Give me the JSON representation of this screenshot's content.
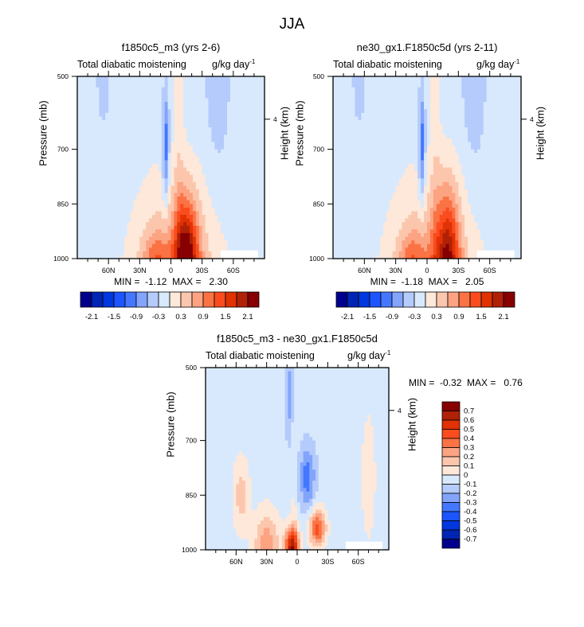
{
  "page_title": "JJA",
  "chart_data": [
    {
      "type": "heatmap",
      "subtype": "filled-contour",
      "title": "f1850c5_m3 (yrs 2-6)",
      "left_label": "Total diabatic moistening",
      "right_label_base": "g/kg day",
      "right_label_exp": "-1",
      "ylabel": "Pressure (mb)",
      "ylabel_right": "Height (km)",
      "yticks": [
        "500",
        "700",
        "850",
        "1000"
      ],
      "yticks_right": [
        "4"
      ],
      "xticks": [
        "60N",
        "30N",
        "0",
        "30S",
        "60S"
      ],
      "ylim": [
        1000,
        500
      ],
      "xlim": [
        "90N",
        "90S"
      ],
      "min_label": "MIN =",
      "min": "-1.12",
      "max_label": "MAX =",
      "max": "2.30",
      "features": [
        {
          "desc": "strong positive moistening maximum near 15S at surface",
          "lat": -15,
          "p": 1000,
          "value": 2.1
        },
        {
          "desc": "negative column near 5N mid-levels",
          "lat": 5,
          "p": 700,
          "value": -0.9
        },
        {
          "desc": "negative region SH subtropics upper levels",
          "lat": -40,
          "p": 600,
          "value": -0.3
        }
      ]
    },
    {
      "type": "heatmap",
      "subtype": "filled-contour",
      "title": "ne30_gx1.F1850c5d (yrs 2-11)",
      "left_label": "Total diabatic moistening",
      "right_label_base": "g/kg day",
      "right_label_exp": "-1",
      "ylabel": "Pressure (mb)",
      "ylabel_right": "Height (km)",
      "yticks": [
        "500",
        "700",
        "850",
        "1000"
      ],
      "yticks_right": [
        "4"
      ],
      "xticks": [
        "60N",
        "30N",
        "0",
        "30S",
        "60S"
      ],
      "ylim": [
        1000,
        500
      ],
      "xlim": [
        "90N",
        "90S"
      ],
      "min_label": "MIN =",
      "min": "-1.18",
      "max_label": "MAX =",
      "max": "2.05",
      "features": [
        {
          "desc": "positive moistening maximum near 20S lower levels",
          "lat": -20,
          "p": 900,
          "value": 1.8
        },
        {
          "desc": "negative column near 5N mid-levels",
          "lat": 5,
          "p": 700,
          "value": -0.9
        }
      ]
    },
    {
      "type": "heatmap",
      "subtype": "filled-contour",
      "title": "f1850c5_m3 - ne30_gx1.F1850c5d",
      "left_label": "Total diabatic moistening",
      "right_label_base": "g/kg day",
      "right_label_exp": "-1",
      "ylabel": "Pressure (mb)",
      "ylabel_right": "Height (km)",
      "yticks": [
        "500",
        "700",
        "850",
        "1000"
      ],
      "yticks_right": [
        "4"
      ],
      "xticks": [
        "60N",
        "30N",
        "0",
        "30S",
        "60S"
      ],
      "ylim": [
        1000,
        500
      ],
      "xlim": [
        "90N",
        "90S"
      ],
      "min_label": "MIN =",
      "min": "-0.32",
      "max_label": "MAX =",
      "max": "0.76",
      "features": [
        {
          "desc": "positive difference max near 5N at ~950mb",
          "lat": 5,
          "p": 950,
          "value": 0.7
        },
        {
          "desc": "secondary positive near 20S at ~950mb",
          "lat": -20,
          "p": 950,
          "value": 0.5
        },
        {
          "desc": "negative difference near 10S mid-levels",
          "lat": -10,
          "p": 780,
          "value": -0.3
        }
      ]
    }
  ],
  "colorbar_top": {
    "labels": [
      "-2.1",
      "-1.5",
      "-0.9",
      "-0.3",
      "0.3",
      "0.9",
      "1.5",
      "2.1"
    ],
    "colors": [
      "#00008c",
      "#0024b4",
      "#0037de",
      "#1c55ff",
      "#4477ff",
      "#82a4fb",
      "#b4cbfb",
      "#d8e9fd",
      "#fde8d9",
      "#fcc6ad",
      "#fca382",
      "#fb7244",
      "#fa4c1e",
      "#e03203",
      "#b02106",
      "#870002"
    ]
  },
  "colorbar_diff": {
    "labels": [
      "0.7",
      "0.6",
      "0.5",
      "0.4",
      "0.3",
      "0.2",
      "0.1",
      "0",
      "-0.1",
      "-0.2",
      "-0.3",
      "-0.4",
      "-0.5",
      "-0.6",
      "-0.7"
    ],
    "colors": [
      "#870002",
      "#b02106",
      "#e03203",
      "#fa4c1e",
      "#fb7244",
      "#fca382",
      "#fcc6ad",
      "#fde8d9",
      "#d8e9fd",
      "#b4cbfb",
      "#82a4fb",
      "#4477ff",
      "#1c55ff",
      "#0037de",
      "#0024b4",
      "#00008c"
    ]
  }
}
